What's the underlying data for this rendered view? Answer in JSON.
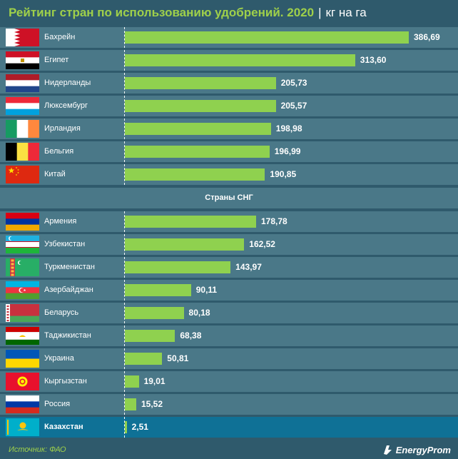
{
  "title": "Рейтинг стран по использованию удобрений. 2020",
  "title_separator": "|",
  "unit": "кг на га",
  "colors": {
    "background": "#2f5a6c",
    "row": "#4a7888",
    "highlight_row": "#0f7196",
    "bar": "#8fd14f",
    "title": "#9fd04a"
  },
  "group_header": "Страны СНГ",
  "source": "Источник: ФАО",
  "brand": "EnergyProm",
  "chart_data": {
    "type": "bar",
    "orientation": "horizontal",
    "title": "Рейтинг стран по использованию удобрений. 2020",
    "unit": "кг на га",
    "groups": [
      {
        "name": "",
        "categories": [
          "Бахрейн",
          "Египет",
          "Нидерланды",
          "Люксембург",
          "Ирландия",
          "Бельгия",
          "Китай"
        ],
        "values": [
          386.69,
          313.6,
          205.73,
          205.57,
          198.98,
          196.99,
          190.85
        ],
        "labels": [
          "386,69",
          "313,60",
          "205,73",
          "205,57",
          "198,98",
          "196,99",
          "190,85"
        ],
        "flags": [
          "bahrain-flag",
          "egypt-flag",
          "netherlands-flag",
          "luxembourg-flag",
          "ireland-flag",
          "belgium-flag",
          "china-flag"
        ]
      },
      {
        "name": "Страны СНГ",
        "categories": [
          "Армения",
          "Узбекистан",
          "Туркменистан",
          "Азербайджан",
          "Беларусь",
          "Таджикистан",
          "Украина",
          "Кыргызстан",
          "Россия",
          "Казахстан"
        ],
        "values": [
          178.78,
          162.52,
          143.97,
          90.11,
          80.18,
          68.38,
          50.81,
          19.01,
          15.52,
          2.51
        ],
        "labels": [
          "178,78",
          "162,52",
          "143,97",
          "90,11",
          "80,18",
          "68,38",
          "50,81",
          "19,01",
          "15,52",
          "2,51"
        ],
        "flags": [
          "armenia-flag",
          "uzbekistan-flag",
          "turkmenistan-flag",
          "azerbaijan-flag",
          "belarus-flag",
          "tajikistan-flag",
          "ukraine-flag",
          "kyrgyzstan-flag",
          "russia-flag",
          "kazakhstan-flag"
        ]
      }
    ],
    "highlight": "Казахстан"
  }
}
